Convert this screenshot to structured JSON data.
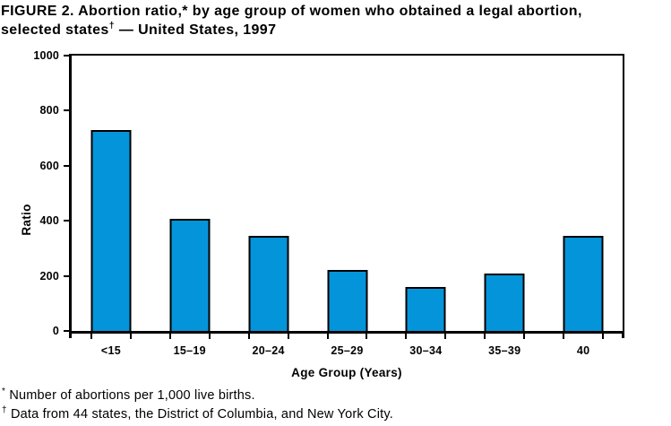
{
  "figure": {
    "title_line1": "FIGURE 2. Abortion ratio,* by age group of women who obtained a legal abortion,",
    "title_line2_pre": "selected states",
    "title_line2_sup": "†",
    "title_line2_post": " — United States, 1997"
  },
  "chart_data": {
    "type": "bar",
    "title": "Abortion ratio, by age group of women who obtained a legal abortion, selected states — United States, 1997",
    "categories": [
      "<15",
      "15–19",
      "20–24",
      "25–29",
      "30–34",
      "35–39",
      "40"
    ],
    "values": [
      730,
      408,
      344,
      222,
      159,
      209,
      346
    ],
    "xlabel": "Age Group (Years)",
    "ylabel": "Ratio",
    "ylim": [
      0,
      1000
    ],
    "yticks": [
      0,
      200,
      400,
      600,
      800,
      1000
    ],
    "grid": false,
    "legend": false,
    "bar_color": "#0494da",
    "bar_border_color": "#000000",
    "axis_color": "#000000"
  },
  "footnotes": [
    {
      "marker": "*",
      "text": "Number of abortions per 1,000 live births."
    },
    {
      "marker": "†",
      "text": "Data from 44 states, the District of Columbia, and New York City."
    }
  ]
}
